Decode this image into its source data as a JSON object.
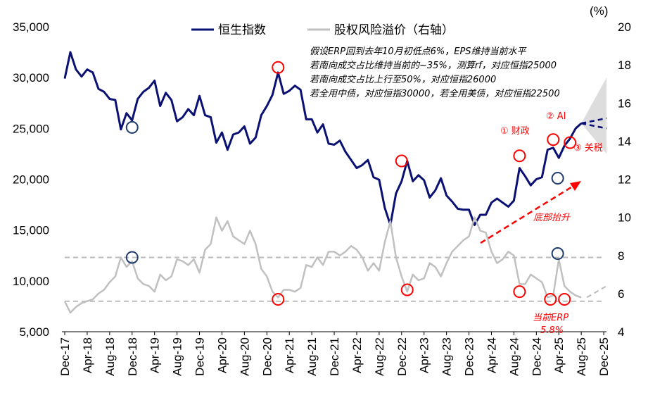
{
  "chart_data": {
    "type": "line",
    "title": "",
    "unit_right": "(%)",
    "start_month": "Dec-17",
    "x_ticks": [
      "Dec-17",
      "Apr-18",
      "Aug-18",
      "Dec-18",
      "Apr-19",
      "Aug-19",
      "Dec-19",
      "Apr-20",
      "Aug-20",
      "Dec-20",
      "Apr-21",
      "Aug-21",
      "Dec-21",
      "Apr-22",
      "Aug-22",
      "Dec-22",
      "Apr-23",
      "Aug-23",
      "Dec-23",
      "Apr-24",
      "Aug-24",
      "Dec-24",
      "Apr-25",
      "Aug-25",
      "Dec-25"
    ],
    "y_left": {
      "ticks": [
        "5,000",
        "10,000",
        "15,000",
        "20,000",
        "25,000",
        "30,000",
        "35,000"
      ],
      "range": [
        5000,
        35000
      ]
    },
    "y_right": {
      "ticks": [
        "4",
        "6",
        "8",
        "10",
        "12",
        "14",
        "16",
        "18",
        "20"
      ],
      "range": [
        4,
        20
      ]
    },
    "legend": [
      "恒生指数",
      "股权风险溢价（右轴）"
    ],
    "series": [
      {
        "name": "恒生指数",
        "axis": "left",
        "color": "#0a1172",
        "values": [
          29900,
          32500,
          30800,
          30100,
          30800,
          30500,
          28900,
          28600,
          27900,
          27800,
          24900,
          26500,
          25800,
          27900,
          28600,
          29000,
          29700,
          27200,
          28500,
          27800,
          25700,
          26100,
          26900,
          26300,
          28200,
          26300,
          26100,
          23600,
          24600,
          22900,
          24400,
          24600,
          25200,
          23500,
          24100,
          26300,
          27200,
          28300,
          30500,
          28400,
          28700,
          29200,
          28800,
          25900,
          25900,
          24600,
          25400,
          23500,
          23400,
          23800,
          22700,
          21900,
          21100,
          21400,
          21900,
          20200,
          19950,
          17200,
          15500,
          18600,
          19800,
          21800,
          19800,
          20400,
          19900,
          18200,
          18900,
          20100,
          18400,
          17800,
          17100,
          17000,
          17000,
          15500,
          16500,
          16500,
          17700,
          18100,
          17700,
          17300,
          17900,
          21100,
          20300,
          19400,
          20000,
          20200,
          22900,
          23100,
          22100,
          23300,
          24000,
          25000,
          25500
        ]
      },
      {
        "name": "股权风险溢价（右轴）",
        "axis": "right",
        "color": "#c0c0c0",
        "values": [
          5.6,
          5.0,
          5.3,
          5.5,
          5.6,
          5.7,
          6.0,
          6.2,
          6.6,
          6.9,
          7.9,
          7.4,
          7.7,
          6.8,
          6.5,
          6.4,
          6.1,
          7.0,
          6.7,
          6.9,
          7.8,
          7.7,
          7.5,
          7.8,
          7.1,
          8.3,
          8.6,
          10.0,
          9.3,
          9.8,
          9.0,
          8.8,
          8.6,
          9.3,
          8.6,
          7.3,
          6.9,
          6.1,
          5.8,
          6.2,
          6.2,
          6.1,
          6.3,
          7.5,
          7.4,
          7.9,
          7.5,
          8.2,
          8.2,
          8.0,
          8.2,
          8.5,
          8.3,
          7.9,
          7.2,
          7.6,
          7.2,
          8.7,
          9.8,
          7.9,
          6.9,
          6.1,
          7.0,
          6.7,
          6.8,
          7.6,
          7.4,
          6.9,
          7.6,
          8.2,
          8.5,
          8.8,
          9.0,
          10.0,
          9.3,
          9.2,
          8.2,
          7.6,
          7.8,
          8.2,
          8.0,
          6.5,
          6.5,
          7.0,
          6.8,
          6.6,
          5.8,
          5.9,
          7.8,
          6.4,
          6.1,
          5.9,
          5.8
        ]
      }
    ],
    "reference_lines_right": [
      7.9,
      5.6
    ],
    "projection": {
      "from_month": 92,
      "to_month": 96,
      "lines": [
        26000,
        25000
      ],
      "band": [
        22500,
        30000
      ]
    },
    "markers": [
      {
        "axis": "left",
        "month": 38,
        "value": 31000,
        "color": "red"
      },
      {
        "axis": "left",
        "month": 60,
        "value": 21800,
        "color": "red"
      },
      {
        "axis": "left",
        "month": 81,
        "value": 22300,
        "color": "red"
      },
      {
        "axis": "left",
        "month": 87,
        "value": 23900,
        "color": "red"
      },
      {
        "axis": "left",
        "month": 90,
        "value": 23600,
        "color": "red"
      },
      {
        "axis": "left",
        "month": 12,
        "value": 25100,
        "color": "blue"
      },
      {
        "axis": "left",
        "month": 87.8,
        "value": 20100,
        "color": "blue"
      },
      {
        "axis": "right",
        "month": 38,
        "value": 5.7,
        "color": "red"
      },
      {
        "axis": "right",
        "month": 61,
        "value": 6.2,
        "color": "red"
      },
      {
        "axis": "right",
        "month": 81,
        "value": 6.1,
        "color": "red"
      },
      {
        "axis": "right",
        "month": 86.5,
        "value": 5.7,
        "color": "red"
      },
      {
        "axis": "right",
        "month": 89,
        "value": 5.7,
        "color": "red"
      },
      {
        "axis": "right",
        "month": 12,
        "value": 7.9,
        "color": "blue"
      },
      {
        "axis": "right",
        "month": 87.8,
        "value": 8.1,
        "color": "blue"
      }
    ],
    "annotations": {
      "assumptions": [
        "假设ERP回到去年10月初低点6%，EPS维持当前水平",
        "若南向成交占比维持当前的~35%，测算rf，对应恒指25000",
        "若南向成交占比上行至50%，对应恒指26000",
        "若全用中债，对应恒指30000，若全用美债，对应恒指22500"
      ],
      "event1": "① 财政",
      "event2": "② AI",
      "event3": "③ 关税",
      "trend": "底部抬升",
      "current_erp": "当前ERP",
      "current_erp_value": "5.8%"
    }
  }
}
